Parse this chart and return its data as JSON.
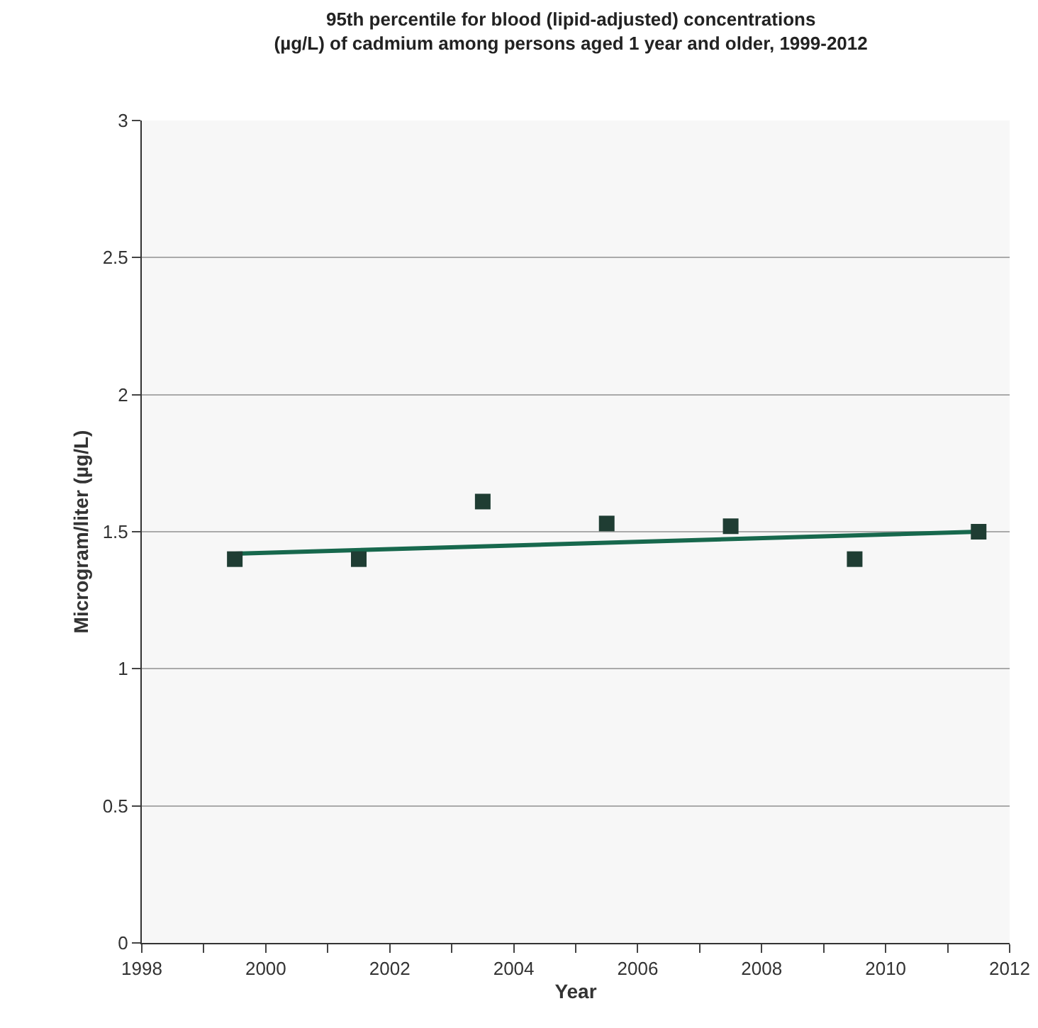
{
  "chart_data": {
    "type": "scatter",
    "title": "95th percentile for blood (lipid-adjusted) concentrations\n(µg/L) of cadmium among persons aged 1 year and older, 1999-2012",
    "xlabel": "Year",
    "ylabel": "Microgram/liter (µg/L)",
    "series": [
      {
        "type": "scatter",
        "color": "#1f3d33",
        "x": [
          1999.5,
          2001.5,
          2003.5,
          2005.5,
          2007.5,
          2009.5,
          2011.5
        ],
        "values": [
          1.4,
          1.4,
          1.61,
          1.53,
          1.52,
          1.4,
          1.5
        ],
        "marker": "square"
      },
      {
        "type": "line",
        "color": "#17684d",
        "x": [
          1999.5,
          2011.5
        ],
        "values": [
          1.42,
          1.5
        ],
        "marker": "none",
        "line_style": "solid"
      }
    ],
    "xlim": [
      1998,
      2012
    ],
    "xticks": [
      1998,
      {
        "value": 1999,
        "label": null
      },
      2000,
      {
        "value": 2001,
        "label": null
      },
      2002,
      {
        "value": 2003,
        "label": null
      },
      2004,
      {
        "value": 2005,
        "label": null
      },
      2006,
      {
        "value": 2007,
        "label": null
      },
      2008,
      {
        "value": 2009,
        "label": null
      },
      2010,
      {
        "value": 2011,
        "label": null
      },
      2012
    ],
    "ylim": [
      0,
      3
    ],
    "yticks": [
      0,
      0.5,
      1,
      1.5,
      2,
      2.5,
      3
    ],
    "grid": "y"
  }
}
